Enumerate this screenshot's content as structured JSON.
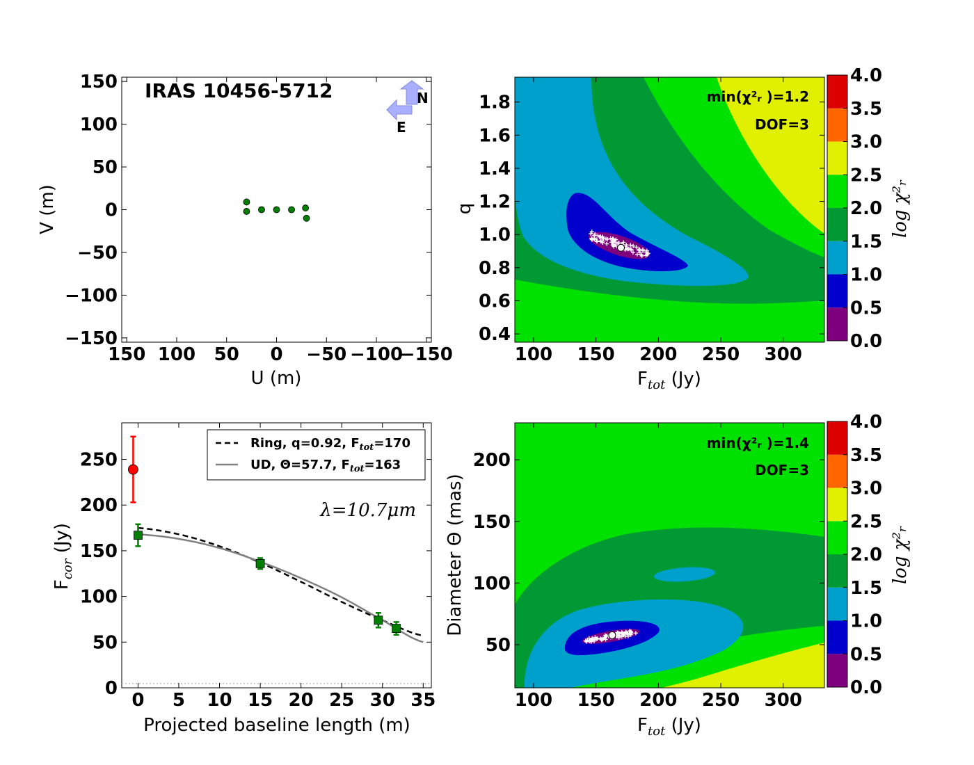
{
  "chart_data": [
    {
      "type": "scatter",
      "title": "IRAS 10456-5712",
      "xlabel": "U (m)",
      "ylabel": "V (m)",
      "xlim": [
        155,
        -155
      ],
      "ylim": [
        -155,
        155
      ],
      "xticks": [
        "150",
        "100",
        "50",
        "0",
        "−50",
        "−100",
        "−150"
      ],
      "xtick_values": [
        150,
        100,
        50,
        0,
        -50,
        -100,
        -150
      ],
      "yticks": [
        "150",
        "100",
        "50",
        "0",
        "−50",
        "−100",
        "−150"
      ],
      "ytick_values": [
        150,
        100,
        50,
        0,
        -50,
        -100,
        -150
      ],
      "compass": {
        "north": "N",
        "east": "E"
      },
      "points": [
        {
          "x": 30,
          "y": 9
        },
        {
          "x": 30,
          "y": -2
        },
        {
          "x": 15,
          "y": 0
        },
        {
          "x": 0,
          "y": 0
        },
        {
          "x": -15,
          "y": 0
        },
        {
          "x": -29,
          "y": 2
        },
        {
          "x": -30,
          "y": -10
        }
      ],
      "marker_color": "#007f00"
    },
    {
      "type": "heatmap",
      "xlabel_main": "F",
      "xlabel_sub": "tot",
      "xlabel_unit": " (Jy)",
      "ylabel": "q",
      "xlim": [
        85,
        333
      ],
      "ylim": [
        0.35,
        1.95
      ],
      "xticks": [
        "100",
        "150",
        "200",
        "250",
        "300"
      ],
      "xtick_values": [
        100,
        150,
        200,
        250,
        300
      ],
      "yticks": [
        "0.4",
        "0.6",
        "0.8",
        "1.0",
        "1.2",
        "1.4",
        "1.6",
        "1.8"
      ],
      "ytick_values": [
        0.4,
        0.6,
        0.8,
        1.0,
        1.2,
        1.4,
        1.6,
        1.8
      ],
      "annotation_min": "min(χ²ᵣ )=1.2",
      "annotation_dof": "DOF=3",
      "best_fit": {
        "x": 170,
        "y": 0.92
      },
      "contour_levels": [
        0.0,
        0.5,
        1.0,
        1.5,
        2.0,
        2.5,
        3.0,
        3.5,
        4.0
      ],
      "colorbar_label": "log χ²ᵣ",
      "colorbar_ticks": [
        "0.0",
        "0.5",
        "1.0",
        "1.5",
        "2.0",
        "2.5",
        "3.0",
        "3.5",
        "4.0"
      ]
    },
    {
      "type": "line",
      "xlabel": "Projected baseline length (m)",
      "ylabel_main": "F",
      "ylabel_sub": "cor",
      "ylabel_unit": " (Jy)",
      "xlim": [
        -2,
        36
      ],
      "ylim": [
        0,
        290
      ],
      "xticks": [
        "0",
        "5",
        "10",
        "15",
        "20",
        "25",
        "30",
        "35"
      ],
      "xtick_values": [
        0,
        5,
        10,
        15,
        20,
        25,
        30,
        35
      ],
      "yticks": [
        "0",
        "50",
        "100",
        "150",
        "200",
        "250"
      ],
      "ytick_values": [
        0,
        50,
        100,
        150,
        200,
        250
      ],
      "wavelength_label": "λ=10.7μm",
      "series": [
        {
          "name": "Ring, q=0.92, F",
          "name_sub": "tot",
          "name_end": "=170",
          "style": "dashed",
          "color": "#000000",
          "x": [
            0,
            5,
            10,
            15,
            20,
            25,
            30,
            35
          ],
          "values": [
            175,
            168,
            155,
            137,
            116,
            94,
            74,
            57
          ]
        },
        {
          "name": "UD, Θ=57.7, F",
          "name_sub": "tot",
          "name_end": "=163",
          "style": "solid",
          "color": "#808080",
          "x": [
            0,
            5,
            10,
            15,
            20,
            25,
            30,
            35
          ],
          "values": [
            168,
            163,
            153,
            138,
            120,
            99,
            74,
            50
          ]
        }
      ],
      "measurements": [
        {
          "x": 0,
          "y": 167,
          "err": 12
        },
        {
          "x": 15,
          "y": 136,
          "err": 6
        },
        {
          "x": 29.5,
          "y": 74,
          "err": 8
        },
        {
          "x": 31.7,
          "y": 65,
          "err": 7
        }
      ],
      "total_flux": {
        "x": -0.6,
        "y": 239,
        "err": 36,
        "color": "#ff0000"
      }
    },
    {
      "type": "heatmap",
      "xlabel_main": "F",
      "xlabel_sub": "tot",
      "xlabel_unit": " (Jy)",
      "ylabel": "Diameter Θ (mas)",
      "xlim": [
        85,
        333
      ],
      "ylim": [
        15,
        230
      ],
      "xticks": [
        "100",
        "150",
        "200",
        "250",
        "300"
      ],
      "xtick_values": [
        100,
        150,
        200,
        250,
        300
      ],
      "yticks": [
        "50",
        "100",
        "150",
        "200"
      ],
      "ytick_values": [
        50,
        100,
        150,
        200
      ],
      "annotation_min": "min(χ²ᵣ )=1.4",
      "annotation_dof": "DOF=3",
      "best_fit": {
        "x": 163,
        "y": 57.7
      },
      "contour_levels": [
        0.0,
        0.5,
        1.0,
        1.5,
        2.0,
        2.5,
        3.0,
        3.5,
        4.0
      ],
      "colorbar_label": "log χ²ᵣ",
      "colorbar_ticks": [
        "0.0",
        "0.5",
        "1.0",
        "1.5",
        "2.0",
        "2.5",
        "3.0",
        "3.5",
        "4.0"
      ]
    }
  ],
  "colors": {
    "level_0_0.5": "#7f007f",
    "level_0.5_1.0": "#0000cc",
    "level_1.0_1.5": "#00a0cc",
    "level_1.5_2.0": "#009933",
    "level_2.0_2.5": "#00e100",
    "level_2.5_3.0": "#e1f000",
    "level_3.0_3.5": "#ff6600",
    "level_3.5_4.0": "#dd0000"
  }
}
